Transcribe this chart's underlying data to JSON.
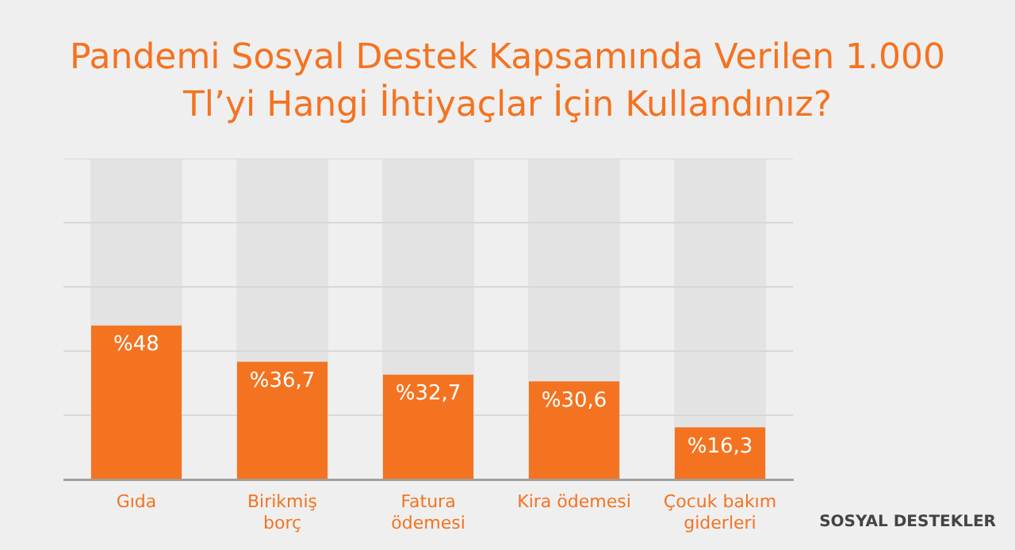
{
  "chart_data": {
    "type": "bar",
    "title": "Pandemi Sosyal Destek Kapsamında Verilen 1.000 Tl’yi Hangi İhtiyaçlar İçin Kullandınız?",
    "categories": [
      "Gıda",
      "Birikmiş borç",
      "Fatura ödemesi",
      "Kira ödemesi",
      "Çocuk bakım giderleri"
    ],
    "values": [
      48,
      36.7,
      32.7,
      30.6,
      16.3
    ],
    "value_labels": [
      "%48",
      "%36,7",
      "%32,7",
      "%30,6",
      "%16,3"
    ],
    "color": "#f47321",
    "ylim": [
      0,
      100
    ],
    "yticks": [
      {
        "value": 0,
        "label": null
      },
      {
        "value": 20,
        "label": null
      },
      {
        "value": 40,
        "label": null
      },
      {
        "value": 60,
        "label": null
      },
      {
        "value": 80,
        "label": null
      },
      {
        "value": 100,
        "label": null
      }
    ],
    "tick_labels": "x",
    "grid": "y",
    "annotations": [
      "SOSYAL DESTEKLER"
    ]
  }
}
